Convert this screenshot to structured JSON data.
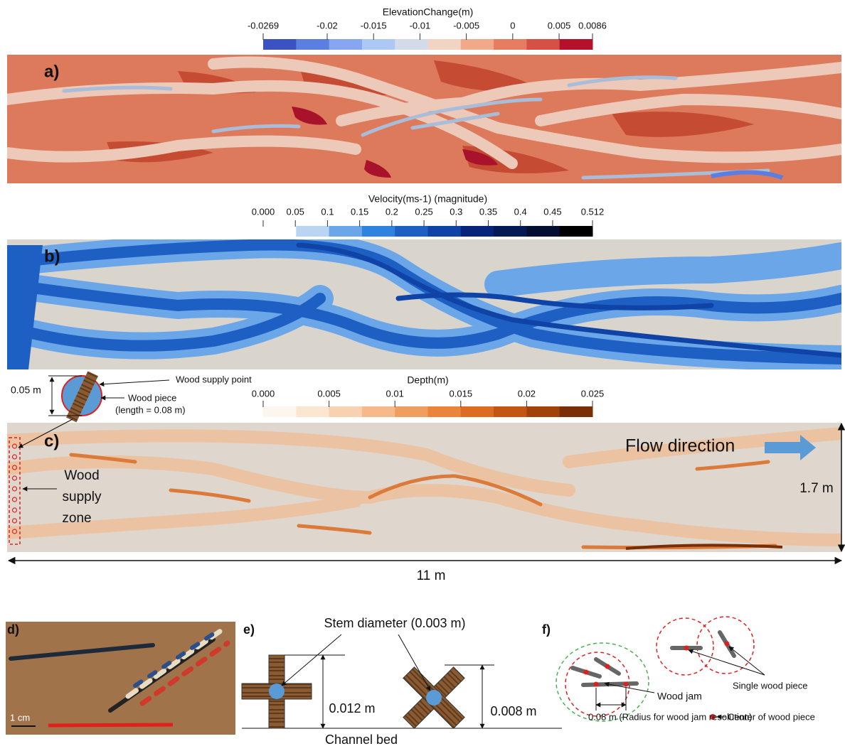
{
  "colorbars": [
    {
      "title": "ElevationChange(m)",
      "ticks": [
        -0.0269,
        -0.02,
        -0.015,
        -0.01,
        -0.005,
        0,
        0.005,
        0.0086
      ],
      "colors": [
        "#3a53c0",
        "#5b7ee0",
        "#86a6f0",
        "#aec8f5",
        "#d4dbe8",
        "#f2d4c4",
        "#f2a98a",
        "#e67c60",
        "#d65045",
        "#b5112a"
      ]
    },
    {
      "title": "Velocity(ms-1) (magnitude)",
      "ticks": [
        {
          "value": 0,
          "label": "0.000"
        },
        0.05,
        0.1,
        0.15,
        0.2,
        0.25,
        0.3,
        0.35,
        0.4,
        0.45,
        0.512
      ],
      "colors": [
        "#ffffff",
        "#b9d5f3",
        "#6aa6e8",
        "#2f82e0",
        "#1e5fc4",
        "#0f44a6",
        "#06257a",
        "#041a55",
        "#020f33",
        "#000000"
      ]
    },
    {
      "title": "Depth(m)",
      "ticks": [
        {
          "value": 0,
          "label": "0.000"
        },
        0.005,
        0.01,
        0.015,
        0.02,
        0.025
      ],
      "colors": [
        "#fdf6ee",
        "#fbe6d2",
        "#f8d1b0",
        "#f5b98a",
        "#f09e5e",
        "#e9843a",
        "#dc6c22",
        "#c25612",
        "#a0420a",
        "#7a2e06"
      ]
    }
  ],
  "panels": {
    "a": {
      "label": "a)"
    },
    "b": {
      "label": "b)"
    },
    "c": {
      "label": "c)",
      "flow": "Flow direction",
      "zone": [
        "Wood",
        "supply",
        "zone"
      ],
      "width": "1.7 m",
      "length": "11 m",
      "inset": {
        "diameter": "0.05 m",
        "supply": "Wood supply point",
        "piece": "Wood piece",
        "piece_length": "(length = 0.08 m)"
      }
    },
    "d": {
      "label": "d)",
      "scale": "1 cm"
    },
    "e": {
      "label": "e)",
      "stem": "Stem diameter (0.003 m)",
      "h1": "0.012 m",
      "h2": "0.008 m",
      "bed": "Channel bed"
    },
    "f": {
      "label": "f)",
      "jam": "Wood jam",
      "single": "Single wood piece",
      "center": "Center of wood piece",
      "radius": "0.08 m (Radius for wood jam resolution)"
    }
  }
}
